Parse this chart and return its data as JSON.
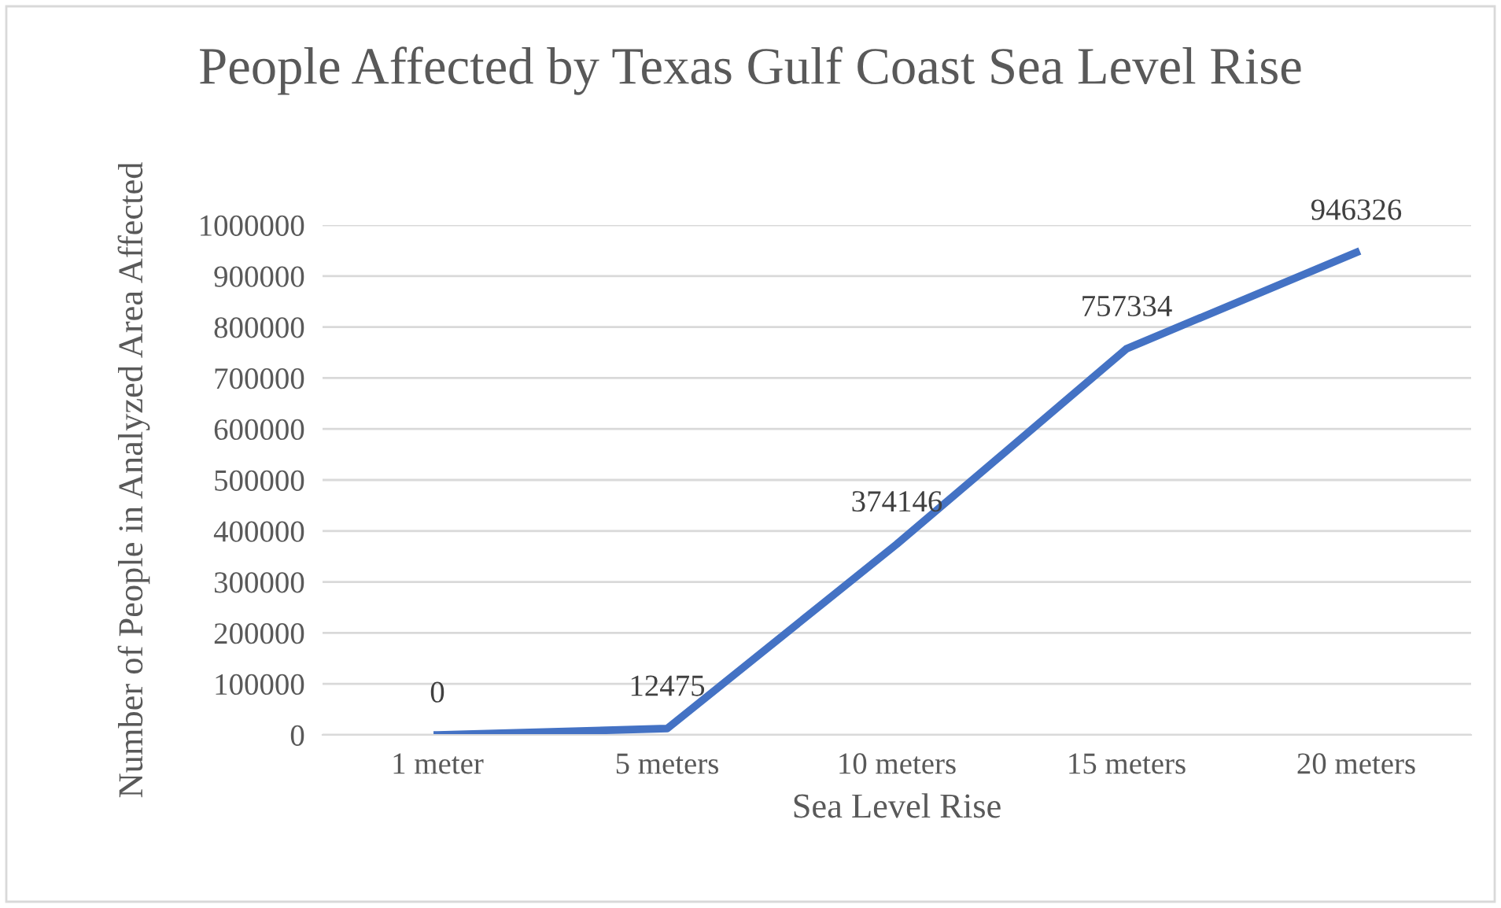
{
  "chart_data": {
    "type": "line",
    "title": "People Affected by Texas Gulf Coast Sea Level Rise",
    "xlabel": "Sea Level Rise",
    "ylabel": "Number of People in Analyzed Area Affected",
    "categories": [
      "1 meter",
      "5 meters",
      "10 meters",
      "15 meters",
      "20 meters"
    ],
    "series": [
      {
        "color": "#4472c4",
        "values": [
          0,
          12475,
          374146,
          757334,
          946326
        ]
      }
    ],
    "ylim": [
      0,
      1000000
    ],
    "yticks": [
      0,
      100000,
      200000,
      300000,
      400000,
      500000,
      600000,
      700000,
      800000,
      900000,
      1000000
    ],
    "grid": "y",
    "data_labels": true,
    "marker": "none",
    "line_style": "solid",
    "legend": false
  }
}
